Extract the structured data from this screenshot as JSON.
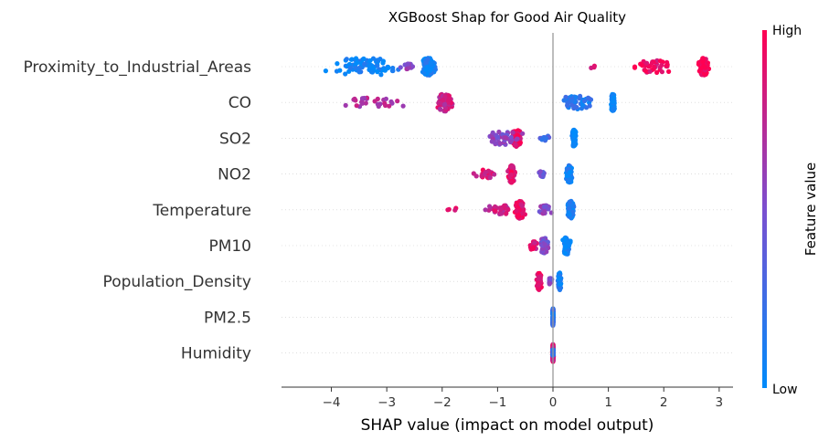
{
  "chart_data": {
    "type": "scatter",
    "title": "XGBoost Shap for Good Air Quality",
    "xlabel": "SHAP value (impact on model output)",
    "xlim": [
      -4.9,
      3.25
    ],
    "xticks": [
      -4,
      -3,
      -2,
      -1,
      0,
      1,
      2,
      3
    ],
    "xtick_labels": [
      "−4",
      "−3",
      "−2",
      "−1",
      "0",
      "1",
      "2",
      "3"
    ],
    "colorbar": {
      "label": "Feature value",
      "high_label": "High",
      "low_label": "Low",
      "low_color": "#008bfb",
      "high_color": "#ff0052"
    },
    "features": [
      {
        "name": "Proximity_to_Industrial_Areas",
        "clusters": [
          {
            "center": -3.4,
            "spread": 1.05,
            "count": 90,
            "feature_value": 0.05
          },
          {
            "center": -2.25,
            "spread": 0.18,
            "count": 110,
            "feature_value": 0.08
          },
          {
            "center": -2.6,
            "spread": 0.3,
            "count": 12,
            "feature_value": 0.6
          },
          {
            "center": 2.72,
            "spread": 0.12,
            "count": 120,
            "feature_value": 0.96
          },
          {
            "center": 1.8,
            "spread": 0.55,
            "count": 40,
            "feature_value": 0.92
          },
          {
            "center": 0.75,
            "spread": 0.1,
            "count": 3,
            "feature_value": 0.9
          }
        ]
      },
      {
        "name": "CO",
        "clusters": [
          {
            "center": 1.08,
            "spread": 0.05,
            "count": 120,
            "feature_value": 0.04
          },
          {
            "center": 0.45,
            "spread": 0.5,
            "count": 45,
            "feature_value": 0.15
          },
          {
            "center": -1.95,
            "spread": 0.2,
            "count": 90,
            "feature_value": 0.8
          },
          {
            "center": -3.2,
            "spread": 0.75,
            "count": 28,
            "feature_value": 0.7
          }
        ]
      },
      {
        "name": "SO2",
        "clusters": [
          {
            "center": 0.38,
            "spread": 0.05,
            "count": 90,
            "feature_value": 0.03
          },
          {
            "center": -0.65,
            "spread": 0.12,
            "count": 60,
            "feature_value": 0.9
          },
          {
            "center": -0.9,
            "spread": 0.5,
            "count": 45,
            "feature_value": 0.55
          },
          {
            "center": -0.15,
            "spread": 0.15,
            "count": 10,
            "feature_value": 0.3
          }
        ]
      },
      {
        "name": "NO2",
        "clusters": [
          {
            "center": 0.3,
            "spread": 0.08,
            "count": 90,
            "feature_value": 0.08
          },
          {
            "center": -0.75,
            "spread": 0.08,
            "count": 70,
            "feature_value": 0.9
          },
          {
            "center": -1.2,
            "spread": 0.35,
            "count": 25,
            "feature_value": 0.85
          },
          {
            "center": -0.2,
            "spread": 0.12,
            "count": 15,
            "feature_value": 0.45
          }
        ]
      },
      {
        "name": "Temperature",
        "clusters": [
          {
            "center": 0.32,
            "spread": 0.08,
            "count": 110,
            "feature_value": 0.1
          },
          {
            "center": -0.6,
            "spread": 0.12,
            "count": 100,
            "feature_value": 0.9
          },
          {
            "center": -1.0,
            "spread": 0.3,
            "count": 30,
            "feature_value": 0.8
          },
          {
            "center": -0.15,
            "spread": 0.15,
            "count": 25,
            "feature_value": 0.55
          },
          {
            "center": -1.85,
            "spread": 0.2,
            "count": 4,
            "feature_value": 0.85
          }
        ]
      },
      {
        "name": "PM10",
        "clusters": [
          {
            "center": 0.25,
            "spread": 0.1,
            "count": 70,
            "feature_value": 0.05
          },
          {
            "center": -0.15,
            "spread": 0.12,
            "count": 50,
            "feature_value": 0.5
          },
          {
            "center": -0.35,
            "spread": 0.1,
            "count": 25,
            "feature_value": 0.85
          }
        ]
      },
      {
        "name": "Population_Density",
        "clusters": [
          {
            "center": 0.12,
            "spread": 0.04,
            "count": 60,
            "feature_value": 0.1
          },
          {
            "center": -0.25,
            "spread": 0.06,
            "count": 60,
            "feature_value": 0.9
          },
          {
            "center": -0.05,
            "spread": 0.05,
            "count": 15,
            "feature_value": 0.5
          }
        ]
      },
      {
        "name": "PM2.5",
        "clusters": [
          {
            "center": 0.0,
            "spread": 0.012,
            "count": 120,
            "feature_value": 0.15
          }
        ]
      },
      {
        "name": "Humidity",
        "clusters": [
          {
            "center": 0.0,
            "spread": 0.015,
            "count": 110,
            "feature_value": 0.85
          },
          {
            "center": 0.0,
            "spread": 0.015,
            "count": 20,
            "feature_value": 0.2
          }
        ]
      }
    ]
  }
}
